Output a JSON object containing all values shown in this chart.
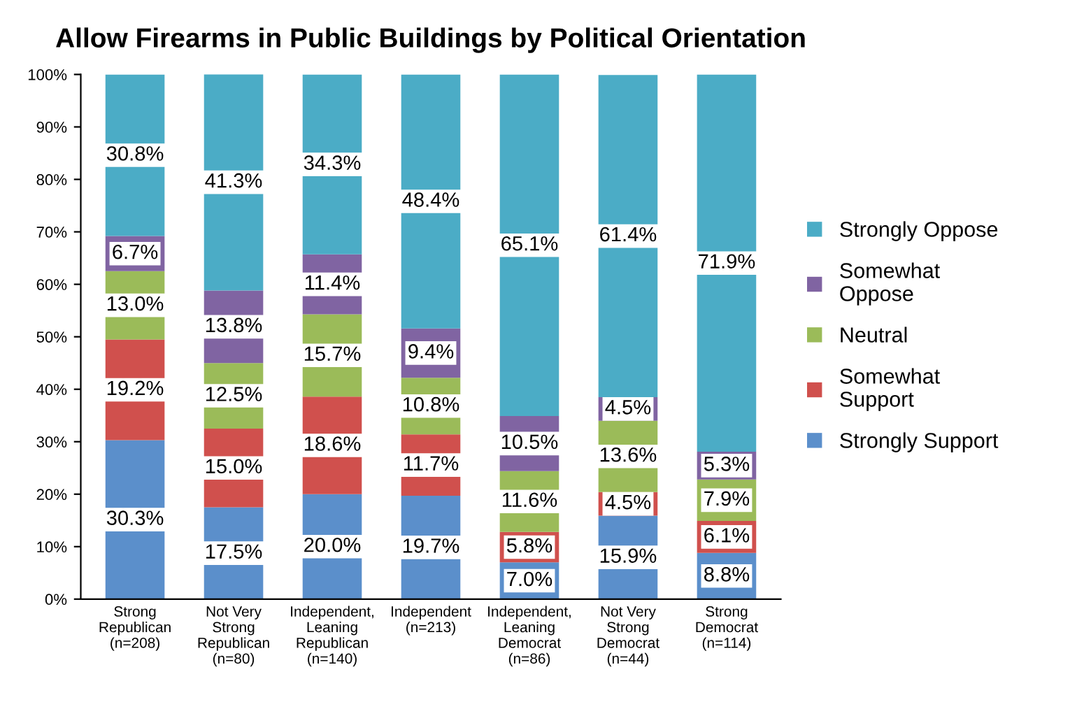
{
  "chart_data": {
    "type": "bar",
    "stacked": true,
    "title": "Allow Firearms in Public Buildings by Political Orientation",
    "categories": [
      "Strong\nRepublican\n(n=208)",
      "Not Very\nStrong\nRepublican\n(n=80)",
      "Independent,\nLeaning\nRepublican\n(n=140)",
      "Independent\n(n=213)",
      "Independent,\nLeaning\nDemocrat\n(n=86)",
      "Not Very\nStrong\nDemocrat\n(n=44)",
      "Strong\nDemocrat\n(n=114)"
    ],
    "series": [
      {
        "name": "Strongly Support",
        "color": "#5b8fcb",
        "values": [
          30.3,
          17.5,
          20.0,
          19.7,
          7.0,
          15.9,
          8.8
        ],
        "value_labels": [
          "30.3%",
          "17.5%",
          "20.0%",
          "19.7%",
          "7.0%",
          "15.9%",
          "8.8%"
        ]
      },
      {
        "name": "Somewhat\nSupport",
        "color": "#d0504d",
        "values": [
          19.2,
          15.0,
          18.6,
          11.7,
          5.8,
          4.5,
          6.1
        ],
        "value_labels": [
          "19.2%",
          "15.0%",
          "18.6%",
          "11.7%",
          "5.8%",
          "4.5%",
          "6.1%"
        ]
      },
      {
        "name": "Neutral",
        "color": "#9bbb59",
        "values": [
          13.0,
          12.5,
          15.7,
          10.8,
          11.6,
          13.6,
          7.9
        ],
        "value_labels": [
          "13.0%",
          "12.5%",
          "15.7%",
          "10.8%",
          "11.6%",
          "13.6%",
          "7.9%"
        ]
      },
      {
        "name": "Somewhat\nOppose",
        "color": "#8064a2",
        "values": [
          6.7,
          13.8,
          11.4,
          9.4,
          10.5,
          4.5,
          5.3
        ],
        "value_labels": [
          "6.7%",
          "13.8%",
          "11.4%",
          "9.4%",
          "10.5%",
          "4.5%",
          "5.3%"
        ]
      },
      {
        "name": "Strongly Oppose",
        "color": "#4bacc6",
        "values": [
          30.8,
          41.3,
          34.3,
          48.4,
          65.1,
          61.4,
          71.9
        ],
        "value_labels": [
          "30.8%",
          "41.3%",
          "34.3%",
          "48.4%",
          "65.1%",
          "61.4%",
          "71.9%"
        ]
      }
    ],
    "ylim": [
      0,
      100
    ],
    "yticks": [
      {
        "value": 0,
        "label": "0%"
      },
      {
        "value": 10,
        "label": "10%"
      },
      {
        "value": 20,
        "label": "20%"
      },
      {
        "value": 30,
        "label": "30%"
      },
      {
        "value": 40,
        "label": "40%"
      },
      {
        "value": 50,
        "label": "50%"
      },
      {
        "value": 60,
        "label": "60%"
      },
      {
        "value": 70,
        "label": "70%"
      },
      {
        "value": 80,
        "label": "80%"
      },
      {
        "value": 90,
        "label": "90%"
      },
      {
        "value": 100,
        "label": "100%"
      }
    ],
    "grid": false,
    "legend": "right"
  }
}
